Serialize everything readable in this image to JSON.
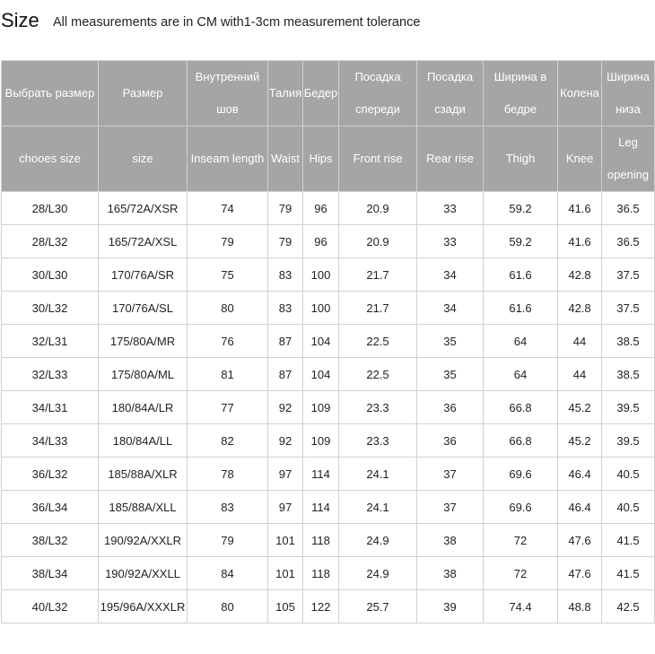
{
  "header": {
    "title": "Size",
    "subtitle": "All measurements are in CM with1-3cm measurement tolerance"
  },
  "table": {
    "header_ru": [
      "Выбрать размер",
      "Размер",
      "Внутренний шов",
      "Талия",
      "Бедер",
      "Посадка спереди",
      "Посадка сзади",
      "Ширина в бедре",
      "Колена",
      "Ширина низа"
    ],
    "header_en": [
      "chooes size",
      "size",
      "Inseam length",
      "Waist",
      "Hips",
      "Front rise",
      "Rear rise",
      "Thigh",
      "Knee",
      "Leg opening"
    ],
    "rows": [
      [
        "28/L30",
        "165/72A/XSR",
        74,
        79,
        96,
        20.9,
        33,
        59.2,
        41.6,
        36.5
      ],
      [
        "28/L32",
        "165/72A/XSL",
        79,
        79,
        96,
        20.9,
        33,
        59.2,
        41.6,
        36.5
      ],
      [
        "30/L30",
        "170/76A/SR",
        75,
        83,
        100,
        21.7,
        34,
        61.6,
        42.8,
        37.5
      ],
      [
        "30/L32",
        "170/76A/SL",
        80,
        83,
        100,
        21.7,
        34,
        61.6,
        42.8,
        37.5
      ],
      [
        "32/L31",
        "175/80A/MR",
        76,
        87,
        104,
        22.5,
        35,
        64,
        44,
        38.5
      ],
      [
        "32/L33",
        "175/80A/ML",
        81,
        87,
        104,
        22.5,
        35,
        64,
        44,
        38.5
      ],
      [
        "34/L31",
        "180/84A/LR",
        77,
        92,
        109,
        23.3,
        36,
        66.8,
        45.2,
        39.5
      ],
      [
        "34/L33",
        "180/84A/LL",
        82,
        92,
        109,
        23.3,
        36,
        66.8,
        45.2,
        39.5
      ],
      [
        "36/L32",
        "185/88A/XLR",
        78,
        97,
        114,
        24.1,
        37,
        69.6,
        46.4,
        40.5
      ],
      [
        "36/L34",
        "185/88A/XLL",
        83,
        97,
        114,
        24.1,
        37,
        69.6,
        46.4,
        40.5
      ],
      [
        "38/L32",
        "190/92A/XXLR",
        79,
        101,
        118,
        24.9,
        38,
        72,
        47.6,
        41.5
      ],
      [
        "38/L34",
        "190/92A/XXLL",
        84,
        101,
        118,
        24.9,
        38,
        72,
        47.6,
        41.5
      ],
      [
        "40/L32",
        "195/96A/XXXLR",
        80,
        105,
        122,
        25.7,
        39,
        74.4,
        48.8,
        42.5
      ]
    ]
  }
}
